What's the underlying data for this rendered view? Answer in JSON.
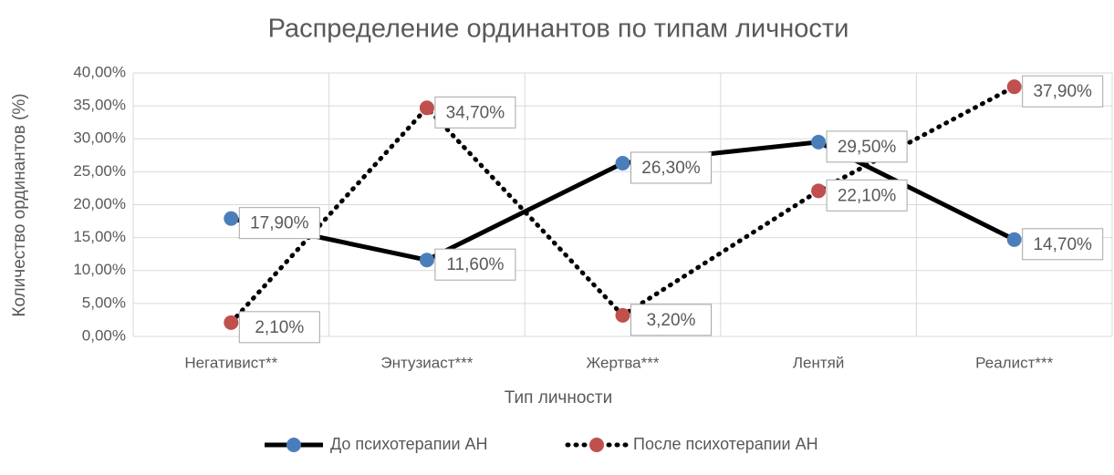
{
  "chart_data": {
    "type": "line",
    "title": "Распределение ординантов по типам личности",
    "x_label": "Тип личности",
    "y_label": "Количество ординантов (%)",
    "categories": [
      "Негативист**",
      "Энтузиаст***",
      "Жертва***",
      "Лентяй",
      "Реалист***"
    ],
    "series": [
      {
        "name": "До психотерапии АН",
        "color": "#4a7ebb",
        "line_color": "#000000",
        "line_style": "solid",
        "values": [
          17.9,
          11.6,
          26.3,
          29.5,
          14.7
        ],
        "value_labels": [
          "17,90%",
          "11,60%",
          "26,30%",
          "29,50%",
          "14,70%"
        ]
      },
      {
        "name": "После психотерапии АН",
        "color": "#c0504d",
        "line_color": "#000000",
        "line_style": "dotted",
        "values": [
          2.1,
          34.7,
          3.2,
          22.1,
          37.9
        ],
        "value_labels": [
          "2,10%",
          "34,70%",
          "3,20%",
          "22,10%",
          "37,90%"
        ]
      }
    ],
    "ylim": [
      0,
      40
    ],
    "yticks": [
      {
        "value": 0,
        "label": "0,00%"
      },
      {
        "value": 5,
        "label": "5,00%"
      },
      {
        "value": 10,
        "label": "10,00%"
      },
      {
        "value": 15,
        "label": "15,00%"
      },
      {
        "value": 20,
        "label": "20,00%"
      },
      {
        "value": 25,
        "label": "25,00%"
      },
      {
        "value": 30,
        "label": "30,00%"
      },
      {
        "value": 35,
        "label": "35,00%"
      },
      {
        "value": 40,
        "label": "40,00%"
      }
    ],
    "grid": true,
    "legend": "bottom"
  }
}
